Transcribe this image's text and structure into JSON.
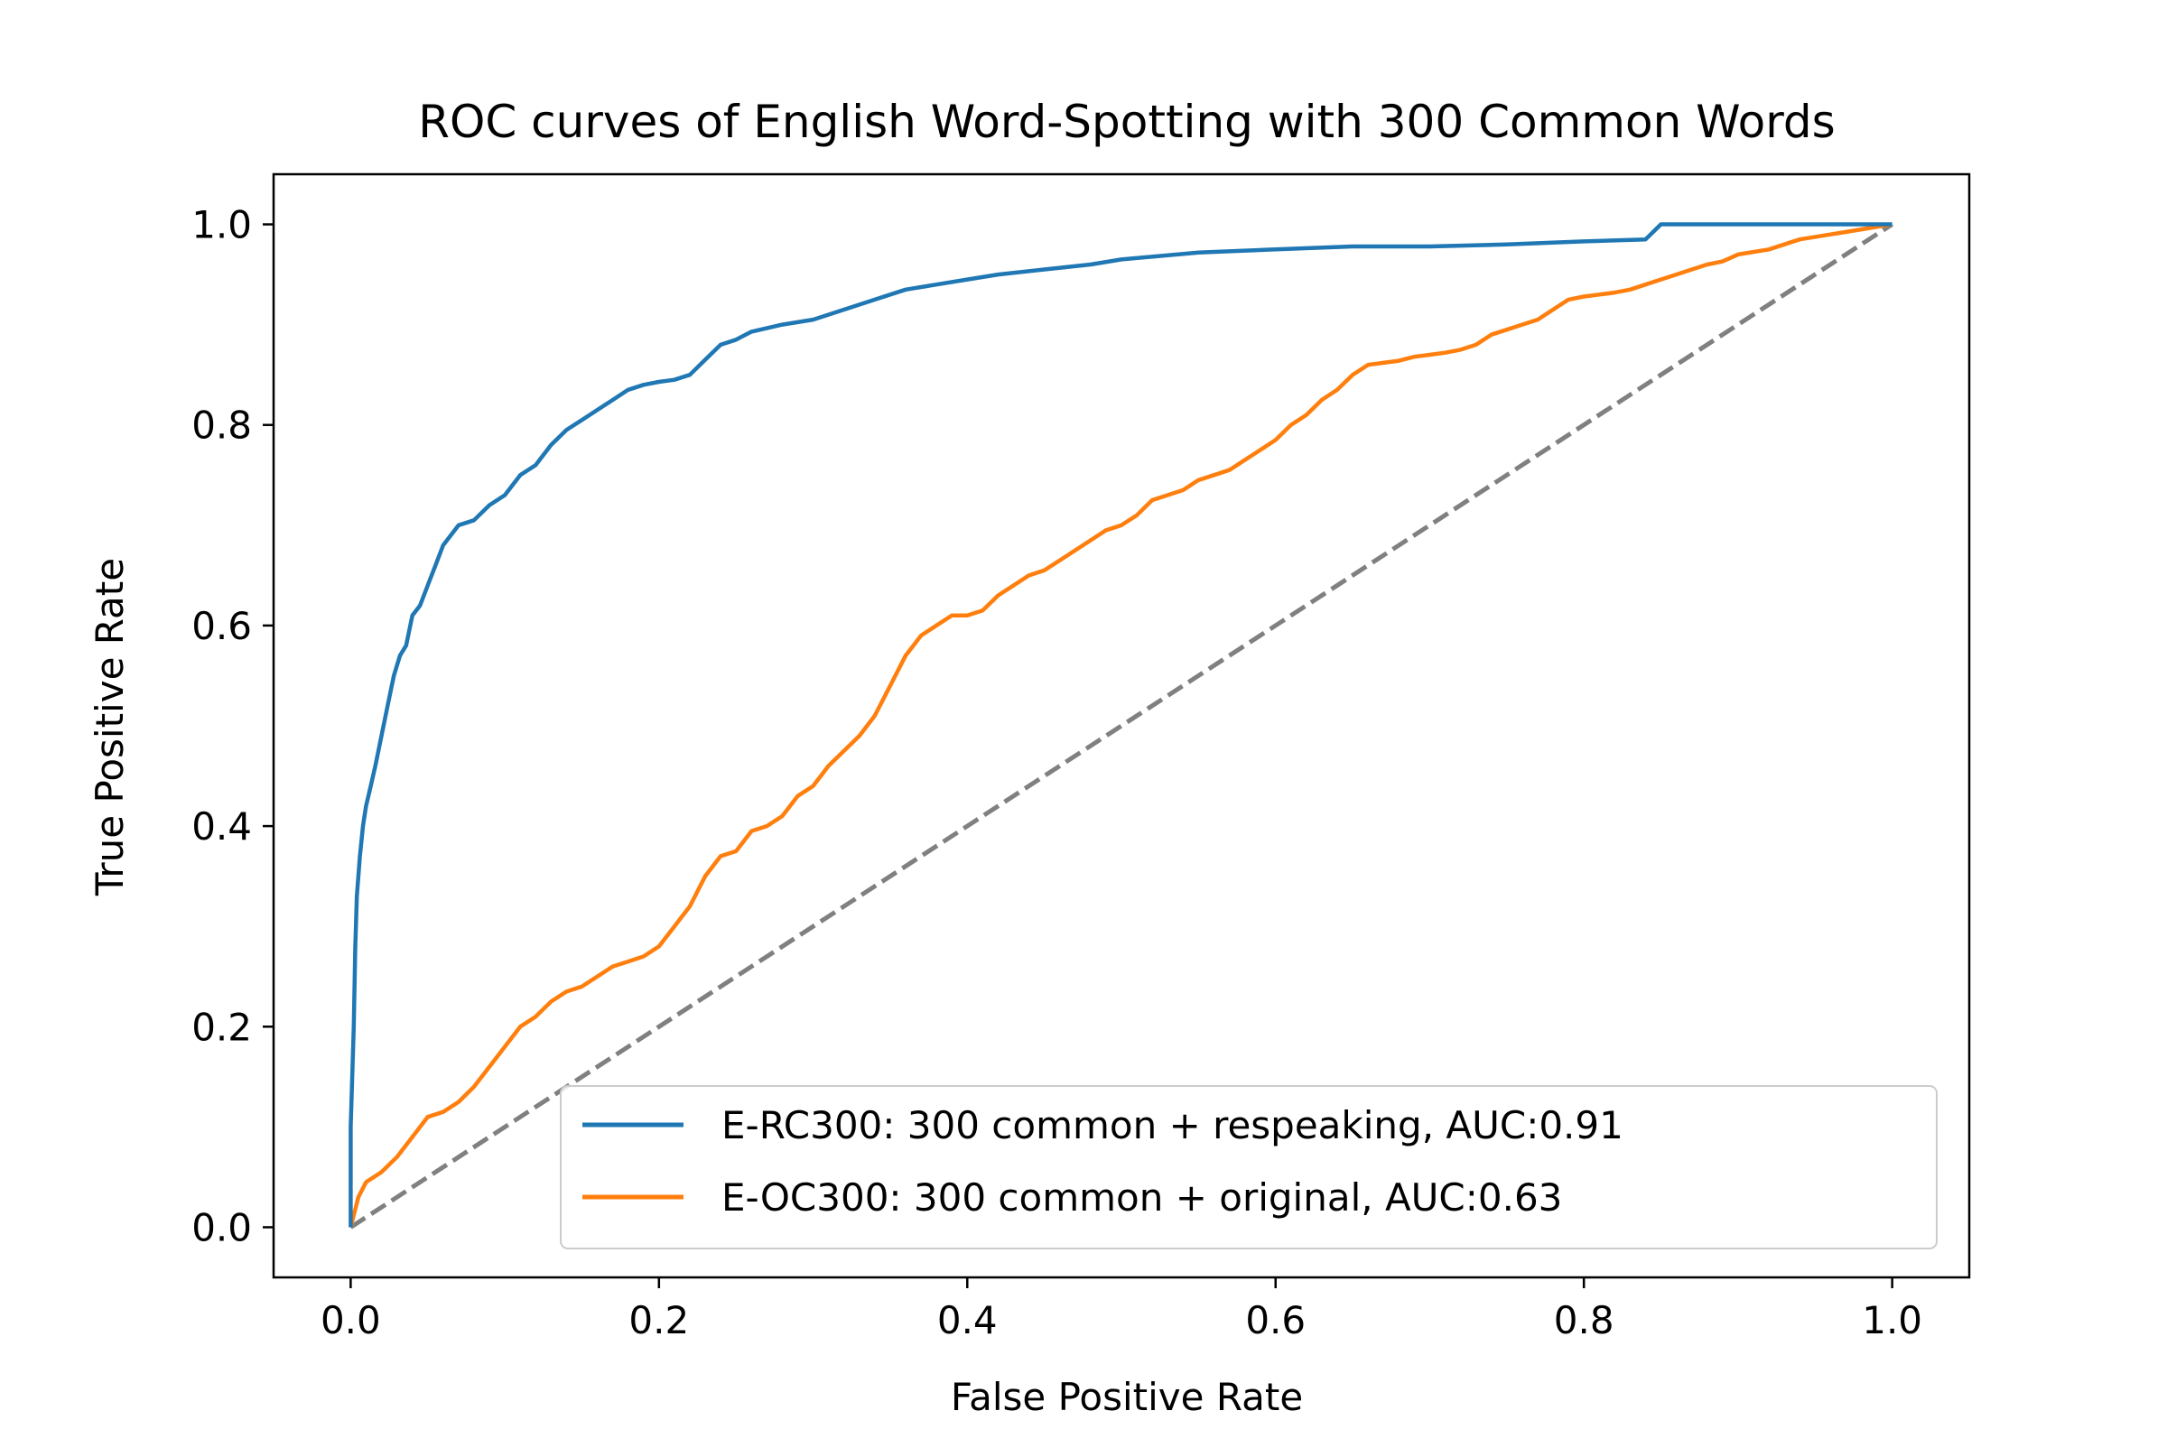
{
  "chart_data": {
    "type": "line",
    "title": "ROC curves of English Word-Spotting with 300 Common Words",
    "xlabel": "False Positive Rate",
    "ylabel": "True Positive Rate",
    "xlim": [
      -0.05,
      1.05
    ],
    "ylim": [
      -0.05,
      1.05
    ],
    "x_ticks": [
      0.0,
      0.2,
      0.4,
      0.6,
      0.8,
      1.0
    ],
    "y_ticks": [
      0.0,
      0.2,
      0.4,
      0.6,
      0.8,
      1.0
    ],
    "x_tick_labels": [
      "0.0",
      "0.2",
      "0.4",
      "0.6",
      "0.8",
      "1.0"
    ],
    "y_tick_labels": [
      "0.0",
      "0.2",
      "0.4",
      "0.6",
      "0.8",
      "1.0"
    ],
    "grid": false,
    "legend_position": "bottom-right",
    "series": [
      {
        "name": "E-RC300: 300 common + respeaking, AUC:0.91",
        "color": "#1f77b4",
        "style": "solid",
        "points": [
          [
            0.0,
            0.0
          ],
          [
            0.0,
            0.1
          ],
          [
            0.002,
            0.2
          ],
          [
            0.003,
            0.28
          ],
          [
            0.004,
            0.33
          ],
          [
            0.006,
            0.37
          ],
          [
            0.008,
            0.4
          ],
          [
            0.01,
            0.42
          ],
          [
            0.013,
            0.44
          ],
          [
            0.016,
            0.46
          ],
          [
            0.02,
            0.49
          ],
          [
            0.024,
            0.52
          ],
          [
            0.028,
            0.55
          ],
          [
            0.032,
            0.57
          ],
          [
            0.036,
            0.58
          ],
          [
            0.04,
            0.61
          ],
          [
            0.045,
            0.62
          ],
          [
            0.05,
            0.64
          ],
          [
            0.055,
            0.66
          ],
          [
            0.06,
            0.68
          ],
          [
            0.07,
            0.7
          ],
          [
            0.08,
            0.705
          ],
          [
            0.09,
            0.72
          ],
          [
            0.1,
            0.73
          ],
          [
            0.11,
            0.75
          ],
          [
            0.12,
            0.76
          ],
          [
            0.13,
            0.78
          ],
          [
            0.14,
            0.795
          ],
          [
            0.15,
            0.805
          ],
          [
            0.16,
            0.815
          ],
          [
            0.17,
            0.825
          ],
          [
            0.18,
            0.835
          ],
          [
            0.19,
            0.84
          ],
          [
            0.2,
            0.843
          ],
          [
            0.21,
            0.845
          ],
          [
            0.22,
            0.85
          ],
          [
            0.23,
            0.865
          ],
          [
            0.24,
            0.88
          ],
          [
            0.25,
            0.885
          ],
          [
            0.26,
            0.893
          ],
          [
            0.28,
            0.9
          ],
          [
            0.3,
            0.905
          ],
          [
            0.32,
            0.915
          ],
          [
            0.34,
            0.925
          ],
          [
            0.36,
            0.935
          ],
          [
            0.38,
            0.94
          ],
          [
            0.4,
            0.945
          ],
          [
            0.42,
            0.95
          ],
          [
            0.45,
            0.955
          ],
          [
            0.48,
            0.96
          ],
          [
            0.5,
            0.965
          ],
          [
            0.55,
            0.972
          ],
          [
            0.6,
            0.975
          ],
          [
            0.65,
            0.978
          ],
          [
            0.7,
            0.978
          ],
          [
            0.75,
            0.98
          ],
          [
            0.8,
            0.983
          ],
          [
            0.84,
            0.985
          ],
          [
            0.85,
            1.0
          ],
          [
            0.9,
            1.0
          ],
          [
            1.0,
            1.0
          ]
        ]
      },
      {
        "name": "E-OC300: 300 common + original, AUC:0.63",
        "color": "#ff7f0e",
        "style": "solid",
        "points": [
          [
            0.0,
            0.0
          ],
          [
            0.005,
            0.03
          ],
          [
            0.01,
            0.045
          ],
          [
            0.02,
            0.055
          ],
          [
            0.03,
            0.07
          ],
          [
            0.04,
            0.09
          ],
          [
            0.05,
            0.11
          ],
          [
            0.06,
            0.115
          ],
          [
            0.07,
            0.125
          ],
          [
            0.08,
            0.14
          ],
          [
            0.09,
            0.16
          ],
          [
            0.1,
            0.18
          ],
          [
            0.11,
            0.2
          ],
          [
            0.12,
            0.21
          ],
          [
            0.13,
            0.225
          ],
          [
            0.14,
            0.235
          ],
          [
            0.15,
            0.24
          ],
          [
            0.16,
            0.25
          ],
          [
            0.17,
            0.26
          ],
          [
            0.18,
            0.265
          ],
          [
            0.19,
            0.27
          ],
          [
            0.2,
            0.28
          ],
          [
            0.21,
            0.3
          ],
          [
            0.22,
            0.32
          ],
          [
            0.23,
            0.35
          ],
          [
            0.24,
            0.37
          ],
          [
            0.25,
            0.375
          ],
          [
            0.26,
            0.395
          ],
          [
            0.27,
            0.4
          ],
          [
            0.28,
            0.41
          ],
          [
            0.29,
            0.43
          ],
          [
            0.3,
            0.44
          ],
          [
            0.31,
            0.46
          ],
          [
            0.32,
            0.475
          ],
          [
            0.33,
            0.49
          ],
          [
            0.34,
            0.51
          ],
          [
            0.35,
            0.54
          ],
          [
            0.36,
            0.57
          ],
          [
            0.37,
            0.59
          ],
          [
            0.38,
            0.6
          ],
          [
            0.39,
            0.61
          ],
          [
            0.4,
            0.61
          ],
          [
            0.41,
            0.615
          ],
          [
            0.42,
            0.63
          ],
          [
            0.43,
            0.64
          ],
          [
            0.44,
            0.65
          ],
          [
            0.45,
            0.655
          ],
          [
            0.46,
            0.665
          ],
          [
            0.47,
            0.675
          ],
          [
            0.48,
            0.685
          ],
          [
            0.49,
            0.695
          ],
          [
            0.5,
            0.7
          ],
          [
            0.51,
            0.71
          ],
          [
            0.52,
            0.725
          ],
          [
            0.53,
            0.73
          ],
          [
            0.54,
            0.735
          ],
          [
            0.55,
            0.745
          ],
          [
            0.56,
            0.75
          ],
          [
            0.57,
            0.755
          ],
          [
            0.58,
            0.765
          ],
          [
            0.59,
            0.775
          ],
          [
            0.6,
            0.785
          ],
          [
            0.61,
            0.8
          ],
          [
            0.62,
            0.81
          ],
          [
            0.63,
            0.825
          ],
          [
            0.64,
            0.835
          ],
          [
            0.65,
            0.85
          ],
          [
            0.66,
            0.86
          ],
          [
            0.67,
            0.862
          ],
          [
            0.68,
            0.864
          ],
          [
            0.69,
            0.868
          ],
          [
            0.7,
            0.87
          ],
          [
            0.71,
            0.872
          ],
          [
            0.72,
            0.875
          ],
          [
            0.73,
            0.88
          ],
          [
            0.74,
            0.89
          ],
          [
            0.75,
            0.895
          ],
          [
            0.76,
            0.9
          ],
          [
            0.77,
            0.905
          ],
          [
            0.78,
            0.915
          ],
          [
            0.79,
            0.925
          ],
          [
            0.8,
            0.928
          ],
          [
            0.81,
            0.93
          ],
          [
            0.82,
            0.932
          ],
          [
            0.83,
            0.935
          ],
          [
            0.84,
            0.94
          ],
          [
            0.85,
            0.945
          ],
          [
            0.86,
            0.95
          ],
          [
            0.87,
            0.955
          ],
          [
            0.88,
            0.96
          ],
          [
            0.89,
            0.963
          ],
          [
            0.9,
            0.97
          ],
          [
            0.92,
            0.975
          ],
          [
            0.94,
            0.985
          ],
          [
            0.96,
            0.99
          ],
          [
            0.98,
            0.995
          ],
          [
            1.0,
            1.0
          ]
        ]
      },
      {
        "name": "",
        "color": "#808080",
        "style": "dashed",
        "points": [
          [
            0.0,
            0.0
          ],
          [
            1.0,
            1.0
          ]
        ]
      }
    ]
  }
}
